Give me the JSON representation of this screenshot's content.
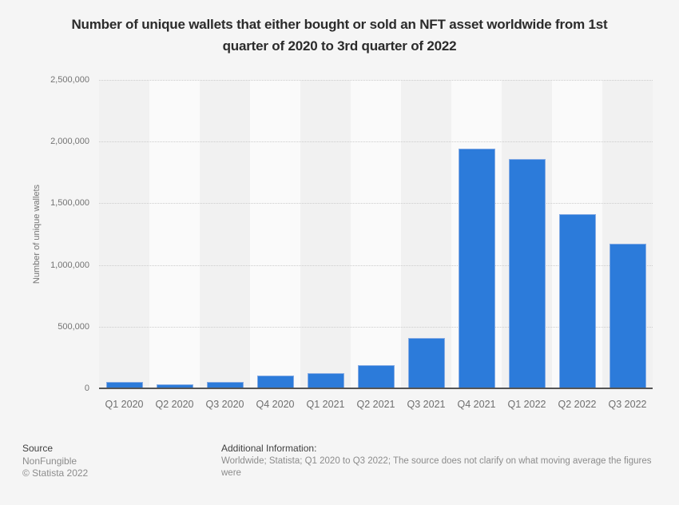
{
  "header": {
    "title_lines": [
      "Number of unique wallets that either bought or sold an NFT asset worldwide from 1st",
      "quarter of 2020 to 3rd quarter of 2022"
    ]
  },
  "chart_data": {
    "type": "bar",
    "title": "Number of unique wallets that either bought or sold an NFT asset worldwide from 1st quarter of 2020 to 3rd quarter of 2022",
    "categories": [
      "Q1 2020",
      "Q2 2020",
      "Q3 2020",
      "Q4 2020",
      "Q1 2021",
      "Q2 2021",
      "Q3 2021",
      "Q4 2021",
      "Q1 2022",
      "Q2 2022",
      "Q3 2022"
    ],
    "values": [
      50000,
      35000,
      55000,
      105000,
      120000,
      190000,
      410000,
      1940000,
      1860000,
      1410000,
      1170000
    ],
    "xlabel": "",
    "ylabel": "Number of unique wallets",
    "ylim": [
      0,
      2500000
    ],
    "yticks": [
      0,
      500000,
      1000000,
      1500000,
      2000000,
      2500000
    ],
    "grid": "horizontal-dotted",
    "legend": "none",
    "bar_color": "#2c7bda",
    "bar_border_color": "#85abe4",
    "band_colors": [
      "#f1f1f1",
      "#fafafa"
    ]
  },
  "footer": {
    "source_label": "Source",
    "source_name": "NonFungible",
    "copyright": "© Statista 2022",
    "additional_info_label": "Additional Information:",
    "additional_info": "Worldwide; Statista; Q1 2020 to Q3 2022; The source does not clarify on what moving average the figures were"
  }
}
